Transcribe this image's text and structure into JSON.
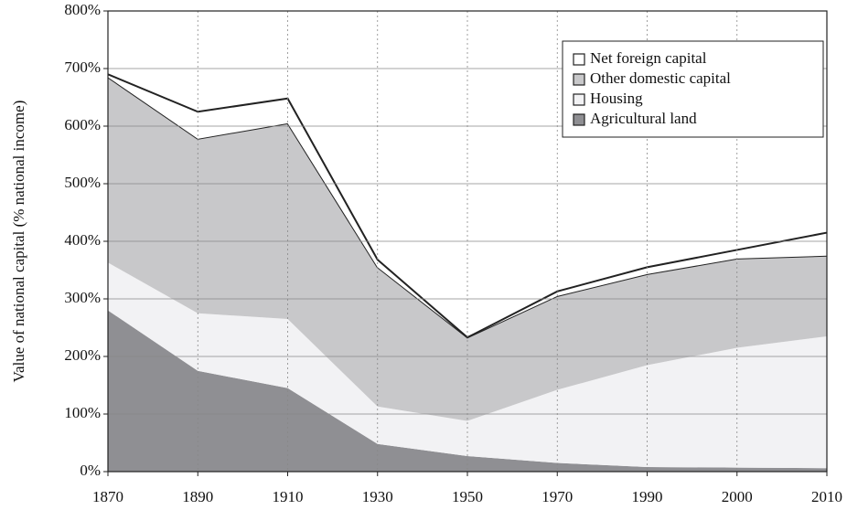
{
  "chart_data": {
    "type": "stacked_area",
    "y_label": "Value of national capital (% national income)",
    "categories": [
      "1870",
      "1890",
      "1910",
      "1930",
      "1950",
      "1970",
      "1990",
      "2000",
      "2010"
    ],
    "series": [
      {
        "name": "Agricultural land",
        "color": "#8f8f93",
        "values": [
          280,
          175,
          145,
          48,
          27,
          15,
          8,
          7,
          6
        ]
      },
      {
        "name": "Housing",
        "color": "#f2f2f4",
        "values": [
          83,
          100,
          120,
          65,
          61,
          127,
          177,
          208,
          229
        ]
      },
      {
        "name": "Other domestic capital",
        "color": "#c8c8ca",
        "outline": "#222222",
        "values": [
          322,
          303,
          340,
          242,
          145,
          163,
          158,
          155,
          140
        ]
      },
      {
        "name": "Net foreign capital",
        "color": "#ffffff",
        "outline": "#222222",
        "values": [
          5,
          47,
          43,
          13,
          0,
          8,
          12,
          15,
          40
        ]
      }
    ],
    "ylim": [
      0,
      800
    ],
    "yticks": [
      {
        "value": 0,
        "label": "0%"
      },
      {
        "value": 100,
        "label": "100%"
      },
      {
        "value": 200,
        "label": "200%"
      },
      {
        "value": 300,
        "label": "300%"
      },
      {
        "value": 400,
        "label": "400%"
      },
      {
        "value": 500,
        "label": "500%"
      },
      {
        "value": 600,
        "label": "600%"
      },
      {
        "value": 700,
        "label": "700%"
      },
      {
        "value": 800,
        "label": "800%"
      }
    ],
    "grid": true,
    "legend": "upper right"
  }
}
